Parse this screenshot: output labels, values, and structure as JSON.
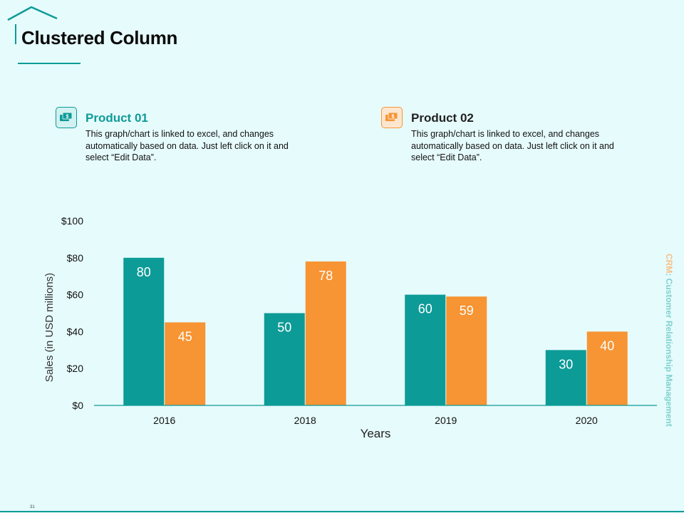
{
  "header": {
    "title": "Clustered Column"
  },
  "products": [
    {
      "name": "Product 01",
      "description": "This graph/chart is linked to excel, and changes automatically based on data. Just left click on it and select “Edit Data”.",
      "icon": "money-icon",
      "color": "#0d9b97"
    },
    {
      "name": "Product 02",
      "description": "This graph/chart is linked to excel, and changes automatically based on data. Just left click on it and select “Edit Data”.",
      "icon": "money-icon",
      "color": "#f79433"
    }
  ],
  "side_label": {
    "accent": "CRM",
    "rest": ": Customer Relationship Management"
  },
  "footer": {
    "page_number": "31"
  },
  "chart_data": {
    "type": "bar",
    "title": "",
    "xlabel": "Years",
    "ylabel": "Sales (in USD millions)",
    "categories": [
      "2016",
      "2018",
      "2019",
      "2020"
    ],
    "series": [
      {
        "name": "Product 01",
        "values": [
          80,
          50,
          60,
          30
        ],
        "color": "#0d9b97"
      },
      {
        "name": "Product 02",
        "values": [
          45,
          78,
          59,
          40
        ],
        "color": "#f79433"
      }
    ],
    "ylim": [
      0,
      100
    ],
    "yticks": [
      0,
      20,
      40,
      60,
      80,
      100
    ],
    "ytick_labels": [
      "$0",
      "$20",
      "$40",
      "$60",
      "$80",
      "$100"
    ],
    "grid": false,
    "legend": "none"
  }
}
